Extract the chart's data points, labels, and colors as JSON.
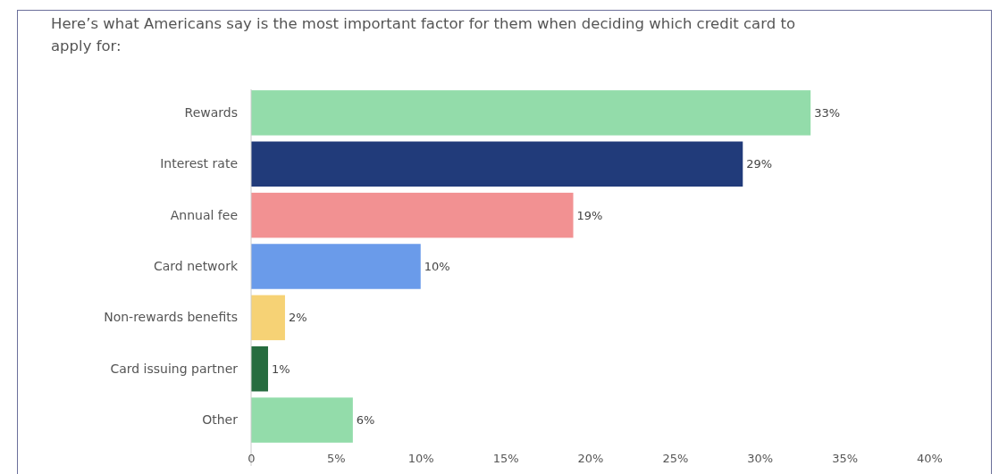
{
  "chart_data": {
    "type": "bar",
    "orientation": "horizontal",
    "title": "Here’s what Americans say is the most important factor for them when deciding which credit card to apply for:",
    "categories": [
      "Rewards",
      "Interest rate",
      "Annual fee",
      "Card network",
      "Non-rewards benefits",
      "Card issuing partner",
      "Other"
    ],
    "values": [
      33,
      29,
      19,
      10,
      2,
      1,
      6
    ],
    "colors": [
      "#93dcaa",
      "#213b7a",
      "#f29192",
      "#6a9bea",
      "#f6d275",
      "#266c3f",
      "#93dcaa"
    ],
    "value_labels": [
      "33%",
      "29%",
      "19%",
      "10%",
      "2%",
      "1%",
      "6%"
    ],
    "xlim": [
      0,
      40
    ],
    "xticks": [
      0,
      {
        "value": 5,
        "label": "5%"
      },
      {
        "value": 10,
        "label": "10%"
      },
      {
        "value": 15,
        "label": "15%"
      },
      {
        "value": 20,
        "label": "20%"
      },
      {
        "value": 25,
        "label": "25%"
      },
      {
        "value": 30,
        "label": "30%"
      },
      {
        "value": 35,
        "label": "35%"
      },
      {
        "value": 40,
        "label": "40%"
      }
    ],
    "grid": false
  }
}
